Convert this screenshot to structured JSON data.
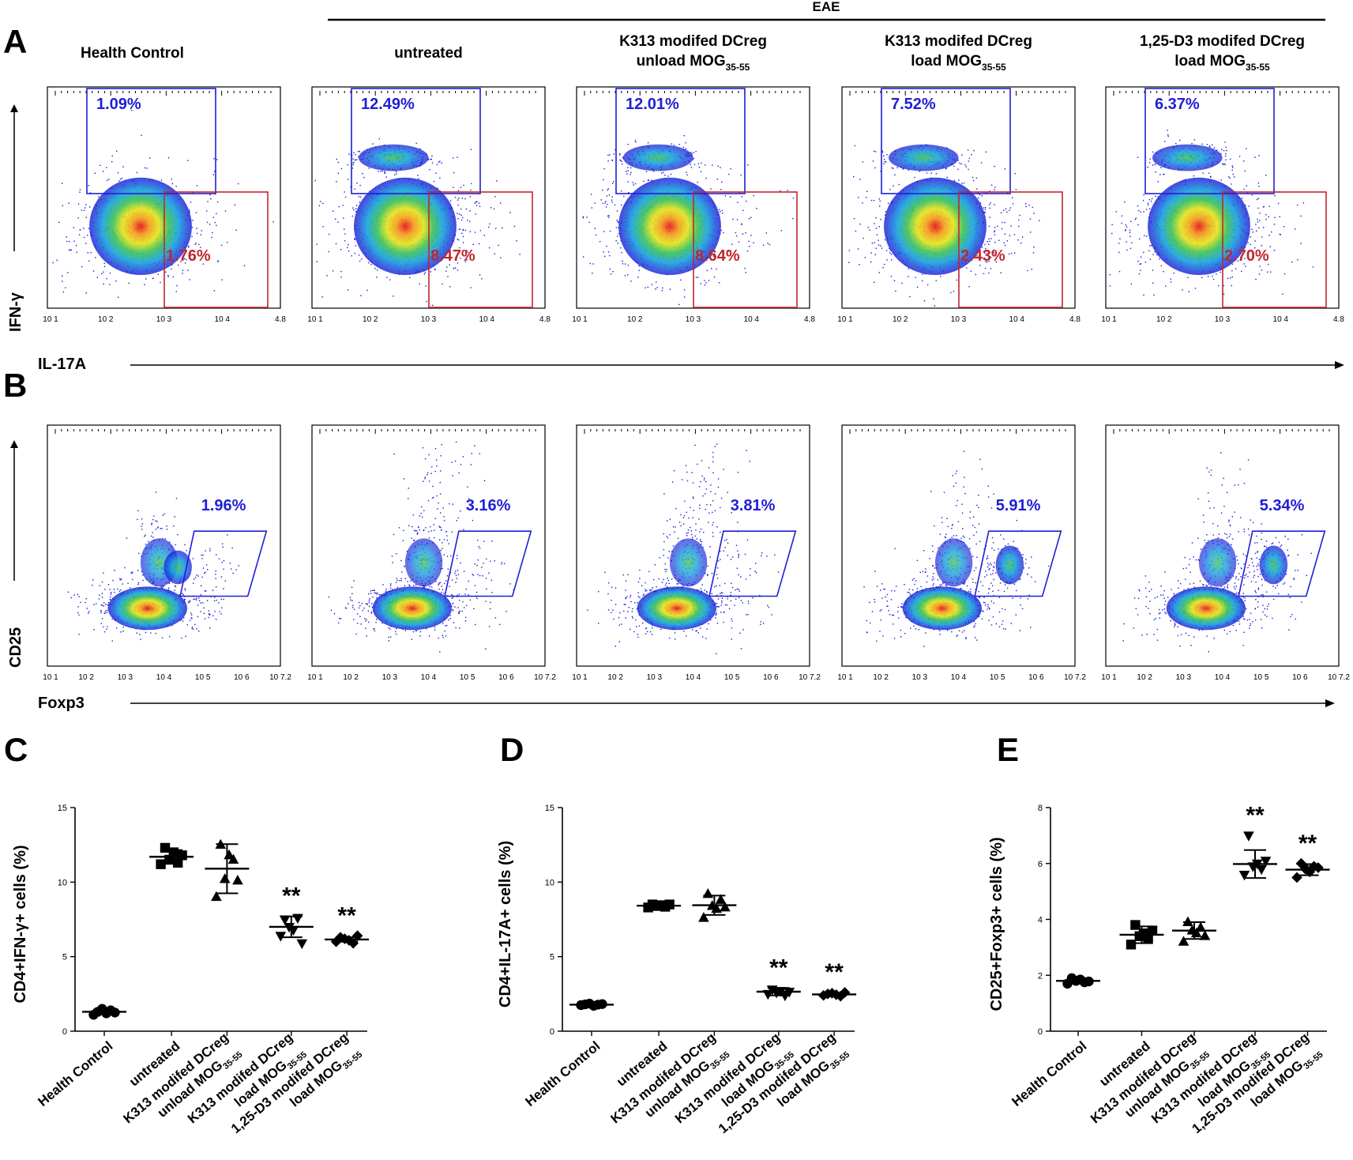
{
  "figure": {
    "eae_label": "EAE",
    "panel_letters": {
      "a": "A",
      "b": "B",
      "c": "C",
      "d": "D",
      "e": "E"
    },
    "flow_groups": [
      {
        "line1": "Health Control",
        "line2": "",
        "sub": ""
      },
      {
        "line1": "untreated",
        "line2": "",
        "sub": ""
      },
      {
        "line1": "K313 modifed DCreg",
        "line2": "unload MOG",
        "sub": "35-55"
      },
      {
        "line1": "K313 modifed DCreg",
        "line2": "load MOG",
        "sub": "35-55"
      },
      {
        "line1": "1,25-D3 modifed DCreg",
        "line2": "load MOG",
        "sub": "35-55"
      }
    ],
    "row_a": {
      "y_axis_label": "IFN-γ",
      "x_axis_label": "IL-17A",
      "x_ticks": [
        "10 1",
        "10 2",
        "10 3",
        "10 4",
        "4.8"
      ],
      "ifng_gate_pct": [
        "1.09%",
        "12.49%",
        "12.01%",
        "7.52%",
        "6.37%"
      ],
      "il17_gate_pct": [
        "1.76%",
        "8.47%",
        "8.64%",
        "2.43%",
        "2.70%"
      ],
      "gate_colors": {
        "ifng": "#1f1fd6",
        "il17": "#c0272d"
      }
    },
    "row_b": {
      "y_axis_label": "CD25",
      "x_axis_label": "Foxp3",
      "x_ticks": [
        "10 1",
        "10 2",
        "10 3",
        "10 4",
        "10 5",
        "10 6",
        "10 7.2"
      ],
      "treg_gate_pct": [
        "1.96%",
        "3.16%",
        "3.81%",
        "5.91%",
        "5.34%"
      ],
      "gate_color": "#1f1fd6"
    },
    "x_categories": [
      {
        "line1": "Health Control",
        "line2": "",
        "sub": ""
      },
      {
        "line1": "untreated",
        "line2": "",
        "sub": ""
      },
      {
        "line1": "K313 modifed DCreg",
        "line2": "unload MOG",
        "sub": "35-55"
      },
      {
        "line1": "K313 modifed DCreg",
        "line2": "load MOG",
        "sub": "35-55"
      },
      {
        "line1": "1,25-D3 modifed DCreg",
        "line2": "load MOG",
        "sub": "35-55"
      }
    ]
  },
  "chart_data": [
    {
      "type": "scatter",
      "panel": "C",
      "ylabel": "CD4+IFN-γ+ cells (%)",
      "categories": [
        "Health Control",
        "untreated",
        "K313 modifed DCreg unload MOG35-55",
        "K313 modifed DCreg load MOG35-55",
        "1,25-D3 modifed DCreg load MOG35-55"
      ],
      "ylim": [
        0,
        15
      ],
      "yticks": [
        0,
        5,
        10,
        15
      ],
      "markers": [
        "circle",
        "square",
        "triangle",
        "triangle-down",
        "diamond"
      ],
      "points": [
        [
          1.1,
          1.3,
          1.5,
          1.2,
          1.4,
          1.25
        ],
        [
          11.2,
          12.3,
          11.5,
          12.0,
          11.3,
          11.8
        ],
        [
          9.0,
          12.5,
          10.2,
          11.8,
          11.5,
          10.1
        ],
        [
          6.4,
          7.5,
          7.0,
          6.8,
          7.6,
          5.9
        ],
        [
          6.0,
          6.3,
          6.2,
          6.1,
          5.9,
          6.4
        ]
      ],
      "means": [
        1.3,
        11.7,
        10.9,
        7.0,
        6.15
      ],
      "err": [
        0.15,
        0.45,
        1.65,
        0.7,
        0.15
      ],
      "sig": [
        "",
        "",
        "",
        "**",
        "**"
      ]
    },
    {
      "type": "scatter",
      "panel": "D",
      "ylabel": "CD4+IL-17A+ cells (%)",
      "categories": [
        "Health Control",
        "untreated",
        "K313 modifed DCreg unload MOG35-55",
        "K313 modifed DCreg load MOG35-55",
        "1,25-D3 modifed DCreg load MOG35-55"
      ],
      "ylim": [
        0,
        15
      ],
      "yticks": [
        0,
        5,
        10,
        15
      ],
      "markers": [
        "circle",
        "square",
        "triangle",
        "triangle-down",
        "diamond"
      ],
      "points": [
        [
          1.75,
          1.8,
          1.85,
          1.7,
          1.78,
          1.82
        ],
        [
          8.3,
          8.5,
          8.4,
          8.45,
          8.35,
          8.5
        ],
        [
          7.6,
          9.2,
          8.4,
          8.2,
          8.8,
          8.3
        ],
        [
          2.5,
          2.8,
          2.6,
          2.7,
          2.4,
          2.65
        ],
        [
          2.4,
          2.5,
          2.55,
          2.45,
          2.35,
          2.6
        ]
      ],
      "means": [
        1.78,
        8.42,
        8.45,
        2.65,
        2.47
      ],
      "err": [
        0.05,
        0.12,
        0.65,
        0.25,
        0.1
      ],
      "sig": [
        "",
        "",
        "",
        "**",
        "**"
      ]
    },
    {
      "type": "scatter",
      "panel": "E",
      "ylabel": "CD25+Foxp3+ cells (%)",
      "categories": [
        "Health Control",
        "untreated",
        "K313 modifed DCreg unload MOG35-55",
        "K313 modifed DCreg load MOG35-55",
        "1,25-D3 modifed DCreg load MOG35-55"
      ],
      "ylim": [
        0,
        8
      ],
      "yticks": [
        0,
        2,
        4,
        6,
        8
      ],
      "markers": [
        "circle",
        "square",
        "triangle",
        "triangle-down",
        "diamond"
      ],
      "points": [
        [
          1.7,
          1.9,
          1.8,
          1.85,
          1.75,
          1.78
        ],
        [
          3.1,
          3.8,
          3.4,
          3.5,
          3.3,
          3.6
        ],
        [
          3.2,
          3.9,
          3.6,
          3.5,
          3.7,
          3.4
        ],
        [
          5.6,
          7.0,
          5.9,
          6.0,
          5.8,
          6.1
        ],
        [
          5.5,
          6.0,
          5.8,
          5.7,
          5.9,
          5.85
        ]
      ],
      "means": [
        1.8,
        3.45,
        3.6,
        5.98,
        5.78
      ],
      "err": [
        0.1,
        0.3,
        0.3,
        0.5,
        0.2
      ],
      "sig": [
        "",
        "",
        "",
        "**",
        "**"
      ]
    }
  ]
}
